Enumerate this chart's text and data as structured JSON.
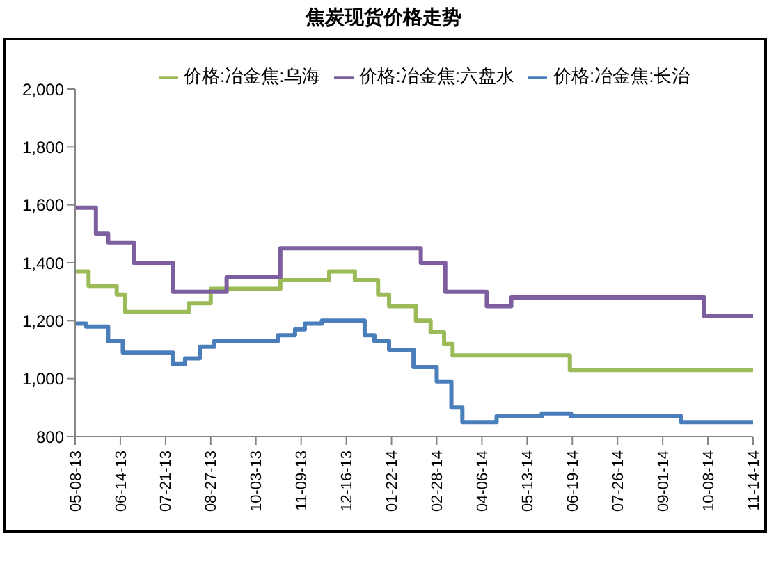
{
  "chart_data": {
    "type": "step",
    "title": "焦炭现货价格走势",
    "series": [
      {
        "name": "价格:冶金焦:长治",
        "color": "#4a7ebb",
        "x": [
          "2013-05-08",
          "2013-05-17",
          "2013-06-04",
          "2013-06-16",
          "2013-07-27",
          "2013-08-06",
          "2013-08-18",
          "2013-08-30",
          "2013-10-21",
          "2013-11-04",
          "2013-11-12",
          "2013-11-26",
          "2013-12-31",
          "2014-01-08",
          "2014-01-20",
          "2014-02-09",
          "2014-02-28",
          "2014-03-12",
          "2014-03-21",
          "2014-04-18",
          "2014-05-25",
          "2014-06-18",
          "2014-09-16",
          "2014-11-14"
        ],
        "values": [
          1190,
          1180,
          1130,
          1090,
          1050,
          1070,
          1110,
          1130,
          1150,
          1170,
          1190,
          1200,
          1150,
          1130,
          1100,
          1040,
          990,
          900,
          850,
          870,
          880,
          870,
          850,
          850
        ]
      },
      {
        "name": "价格:冶金焦:乌海",
        "color": "#9bbb59",
        "x": [
          "2013-05-08",
          "2013-05-19",
          "2013-06-11",
          "2013-06-18",
          "2013-08-09",
          "2013-08-27",
          "2013-10-23",
          "2013-12-02",
          "2013-12-23",
          "2014-01-11",
          "2014-01-20",
          "2014-02-11",
          "2014-02-23",
          "2014-03-06",
          "2014-03-13",
          "2014-06-17",
          "2014-11-14"
        ],
        "values": [
          1370,
          1320,
          1290,
          1230,
          1260,
          1310,
          1340,
          1370,
          1340,
          1290,
          1250,
          1200,
          1160,
          1120,
          1080,
          1030,
          1030
        ]
      },
      {
        "name": "价格:冶金焦:六盘水",
        "color": "#7d5fa0",
        "x": [
          "2013-05-08",
          "2013-05-25",
          "2013-06-04",
          "2013-06-25",
          "2013-07-27",
          "2013-09-09",
          "2013-10-23",
          "2014-02-15",
          "2014-03-07",
          "2014-04-10",
          "2014-04-30",
          "2014-10-05",
          "2014-11-14"
        ],
        "values": [
          1590,
          1500,
          1470,
          1400,
          1300,
          1350,
          1450,
          1400,
          1300,
          1250,
          1280,
          1215,
          1215
        ]
      }
    ],
    "xlim": [
      "2013-05-08",
      "2014-11-14"
    ],
    "xticks": [
      {
        "value": "2013-05-08",
        "label": "05-08-13"
      },
      {
        "value": "2013-06-14",
        "label": "06-14-13"
      },
      {
        "value": "2013-07-21",
        "label": "07-21-13"
      },
      {
        "value": "2013-08-27",
        "label": "08-27-13"
      },
      {
        "value": "2013-10-03",
        "label": "10-03-13"
      },
      {
        "value": "2013-11-09",
        "label": "11-09-13"
      },
      {
        "value": "2013-12-16",
        "label": "12-16-13"
      },
      {
        "value": "2014-01-22",
        "label": "01-22-14"
      },
      {
        "value": "2014-02-28",
        "label": "02-28-14"
      },
      {
        "value": "2014-04-06",
        "label": "04-06-14"
      },
      {
        "value": "2014-05-13",
        "label": "05-13-14"
      },
      {
        "value": "2014-06-19",
        "label": "06-19-14"
      },
      {
        "value": "2014-07-26",
        "label": "07-26-14"
      },
      {
        "value": "2014-09-01",
        "label": "09-01-14"
      },
      {
        "value": "2014-10-08",
        "label": "10-08-14"
      },
      {
        "value": "2014-11-14",
        "label": "11-14-14"
      }
    ],
    "ylim": [
      800,
      2000
    ],
    "yticks": [
      {
        "value": 800,
        "label": "800"
      },
      {
        "value": 1000,
        "label": "1,000"
      },
      {
        "value": 1200,
        "label": "1,200"
      },
      {
        "value": 1400,
        "label": "1,400"
      },
      {
        "value": 1600,
        "label": "1,600"
      },
      {
        "value": 1800,
        "label": "1,800"
      },
      {
        "value": 2000,
        "label": "2,000"
      }
    ],
    "grid": false,
    "legend": "top",
    "marker": "none",
    "line_style": "solid"
  }
}
